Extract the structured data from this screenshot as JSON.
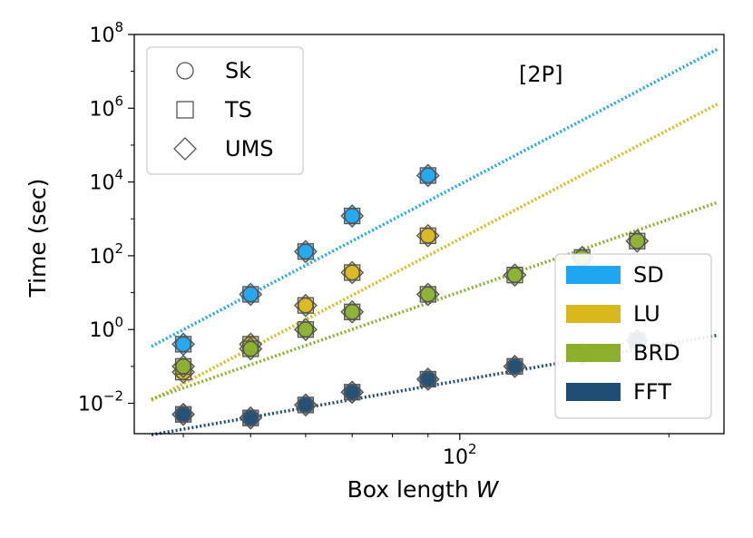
{
  "chart_data": {
    "type": "scatter",
    "title": "",
    "annotation": "[2P]",
    "xlabel": "Box length",
    "xlabel_var": "W",
    "ylabel": "Time (sec)",
    "xscale": "log",
    "yscale": "log",
    "xlim": [
      34,
      240
    ],
    "ylim": [
      0.0015,
      100000000
    ],
    "x_tick_labels": [
      {
        "base": "10",
        "exp": "2",
        "value": 100
      }
    ],
    "y_tick_labels": [
      {
        "base": "10",
        "exp": "−2",
        "value": 0.01
      },
      {
        "base": "10",
        "exp": "0",
        "value": 1
      },
      {
        "base": "10",
        "exp": "2",
        "value": 100
      },
      {
        "base": "10",
        "exp": "4",
        "value": 10000
      },
      {
        "base": "10",
        "exp": "6",
        "value": 1000000
      },
      {
        "base": "10",
        "exp": "8",
        "value": 100000000
      }
    ],
    "grid": false,
    "marker_legend": {
      "placement": "top-left",
      "entries": [
        {
          "label": "Sk",
          "marker": "circle"
        },
        {
          "label": "TS",
          "marker": "square"
        },
        {
          "label": "UMS",
          "marker": "diamond"
        }
      ]
    },
    "series_legend": {
      "placement": "bottom-right",
      "entries": [
        "SD",
        "LU",
        "BRD",
        "FFT"
      ]
    },
    "series": [
      {
        "name": "SD",
        "color": "#1fa6f0",
        "points": [
          [
            40,
            0.4
          ],
          [
            50,
            9
          ],
          [
            60,
            130
          ],
          [
            70,
            1200
          ],
          [
            90,
            15000
          ]
        ],
        "fit": {
          "x": [
            36,
            235
          ],
          "y": [
            0.35,
            40000000
          ]
        }
      },
      {
        "name": "LU",
        "color": "#d8b81c",
        "points": [
          [
            40,
            0.07
          ],
          [
            50,
            0.4
          ],
          [
            60,
            4.5
          ],
          [
            70,
            35
          ],
          [
            90,
            350
          ]
        ],
        "fit": {
          "x": [
            36,
            235
          ],
          "y": [
            0.012,
            1300000
          ]
        }
      },
      {
        "name": "BRD",
        "color": "#8cb02e",
        "points": [
          [
            40,
            0.1
          ],
          [
            50,
            0.3
          ],
          [
            60,
            1.0
          ],
          [
            70,
            3.0
          ],
          [
            90,
            9
          ],
          [
            120,
            30
          ],
          [
            150,
            90
          ],
          [
            180,
            250
          ]
        ],
        "fit": {
          "x": [
            36,
            235
          ],
          "y": [
            0.013,
            2800
          ]
        }
      },
      {
        "name": "FFT",
        "color": "#1f4d73",
        "points": [
          [
            40,
            0.005
          ],
          [
            50,
            0.004
          ],
          [
            60,
            0.009
          ],
          [
            70,
            0.02
          ],
          [
            90,
            0.045
          ],
          [
            120,
            0.1
          ],
          [
            150,
            0.22
          ],
          [
            180,
            0.5
          ]
        ],
        "fit": {
          "x": [
            36,
            235
          ],
          "y": [
            0.0014,
            0.7
          ]
        }
      }
    ]
  }
}
